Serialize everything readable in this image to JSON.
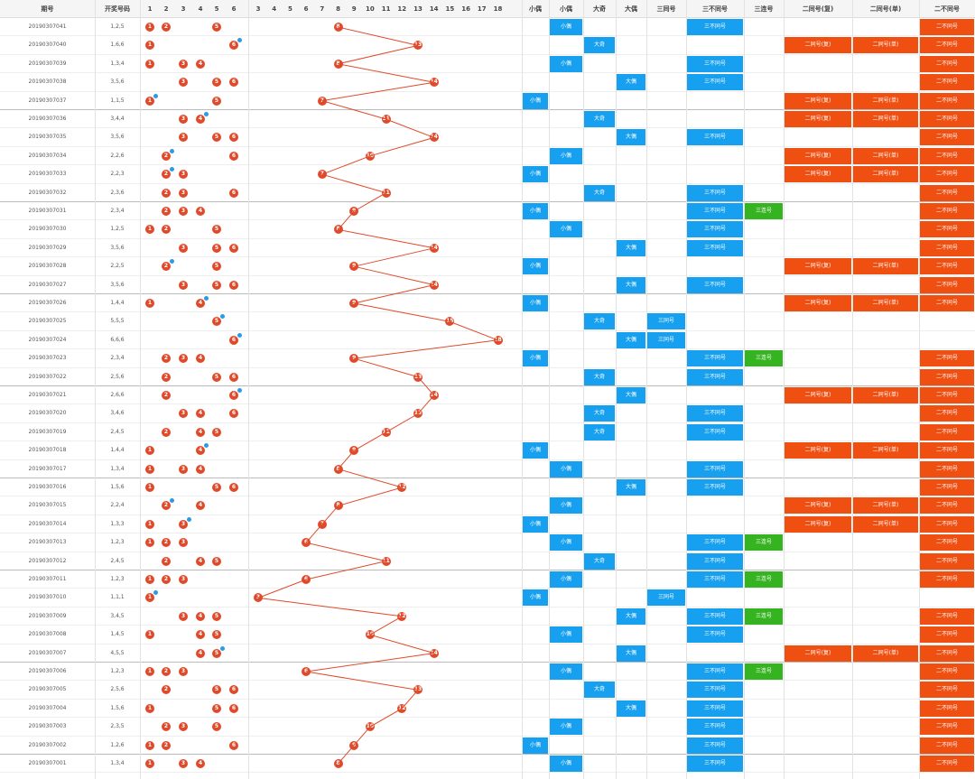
{
  "header": {
    "col_period": "期号",
    "col_numbers": "开奖号码",
    "d1": [
      "1",
      "2",
      "3",
      "4",
      "5",
      "6"
    ],
    "d2": [
      "3",
      "4",
      "5",
      "6",
      "7",
      "8",
      "9",
      "10",
      "11",
      "12",
      "13",
      "14",
      "15",
      "16",
      "17",
      "18"
    ],
    "t1": "小偶",
    "t2": "小偶",
    "t3": "大奇",
    "t4": "大偶",
    "t5": "三同号",
    "t6": "三不同号",
    "t7": "三连号",
    "t8": "二同号(复)",
    "t9": "二同号(单)",
    "t10": "二不同号"
  },
  "rows": [
    {
      "p": "20190307041",
      "n": "1,2,5"
    },
    {
      "p": "20190307040",
      "n": "1,6,6"
    },
    {
      "p": "20190307039",
      "n": "1,3,4"
    },
    {
      "p": "20190307038",
      "n": "3,5,6"
    },
    {
      "p": "20190307037",
      "n": "1,1,5"
    },
    {
      "p": "20190307036",
      "n": "3,4,4"
    },
    {
      "p": "20190307035",
      "n": "3,5,6"
    },
    {
      "p": "20190307034",
      "n": "2,2,6"
    },
    {
      "p": "20190307033",
      "n": "2,2,3"
    },
    {
      "p": "20190307032",
      "n": "2,3,6"
    },
    {
      "p": "20190307031",
      "n": "2,3,4"
    },
    {
      "p": "20190307030",
      "n": "1,2,5"
    },
    {
      "p": "20190307029",
      "n": "3,5,6"
    },
    {
      "p": "20190307028",
      "n": "2,2,5"
    },
    {
      "p": "20190307027",
      "n": "3,5,6"
    },
    {
      "p": "20190307026",
      "n": "1,4,4"
    },
    {
      "p": "20190307025",
      "n": "5,5,5"
    },
    {
      "p": "20190307024",
      "n": "6,6,6"
    },
    {
      "p": "20190307023",
      "n": "2,3,4"
    },
    {
      "p": "20190307022",
      "n": "2,5,6"
    },
    {
      "p": "20190307021",
      "n": "2,6,6"
    },
    {
      "p": "20190307020",
      "n": "3,4,6"
    },
    {
      "p": "20190307019",
      "n": "2,4,5"
    },
    {
      "p": "20190307018",
      "n": "1,4,4"
    },
    {
      "p": "20190307017",
      "n": "1,3,4"
    },
    {
      "p": "20190307016",
      "n": "1,5,6"
    },
    {
      "p": "20190307015",
      "n": "2,2,4"
    },
    {
      "p": "20190307014",
      "n": "1,3,3"
    },
    {
      "p": "20190307013",
      "n": "1,2,3"
    },
    {
      "p": "20190307012",
      "n": "2,4,5"
    },
    {
      "p": "20190307011",
      "n": "1,2,3"
    },
    {
      "p": "20190307010",
      "n": "1,1,1"
    },
    {
      "p": "20190307009",
      "n": "3,4,5"
    },
    {
      "p": "20190307008",
      "n": "1,4,5"
    },
    {
      "p": "20190307007",
      "n": "4,5,5"
    },
    {
      "p": "20190307006",
      "n": "1,2,3"
    },
    {
      "p": "20190307005",
      "n": "2,5,6"
    },
    {
      "p": "20190307004",
      "n": "1,5,6"
    },
    {
      "p": "20190307003",
      "n": "2,3,5"
    },
    {
      "p": "20190307002",
      "n": "1,2,6"
    },
    {
      "p": "20190307001",
      "n": "1,3,4"
    }
  ],
  "tags": {
    "small": "小偶",
    "big_odd": "大奇",
    "big_even": "大偶",
    "triple": "三同号",
    "three_diff": "三不同号",
    "three_seq": "三连号",
    "two_same_multi": "二同号(复)",
    "two_same_single": "二同号(单)",
    "two_diff": "二不同号"
  },
  "colors": {
    "ball": "#e04a2a",
    "blue": "#17a0ef",
    "green": "#36b320",
    "orange": "#f04f12",
    "dot": "#2b9be8"
  }
}
